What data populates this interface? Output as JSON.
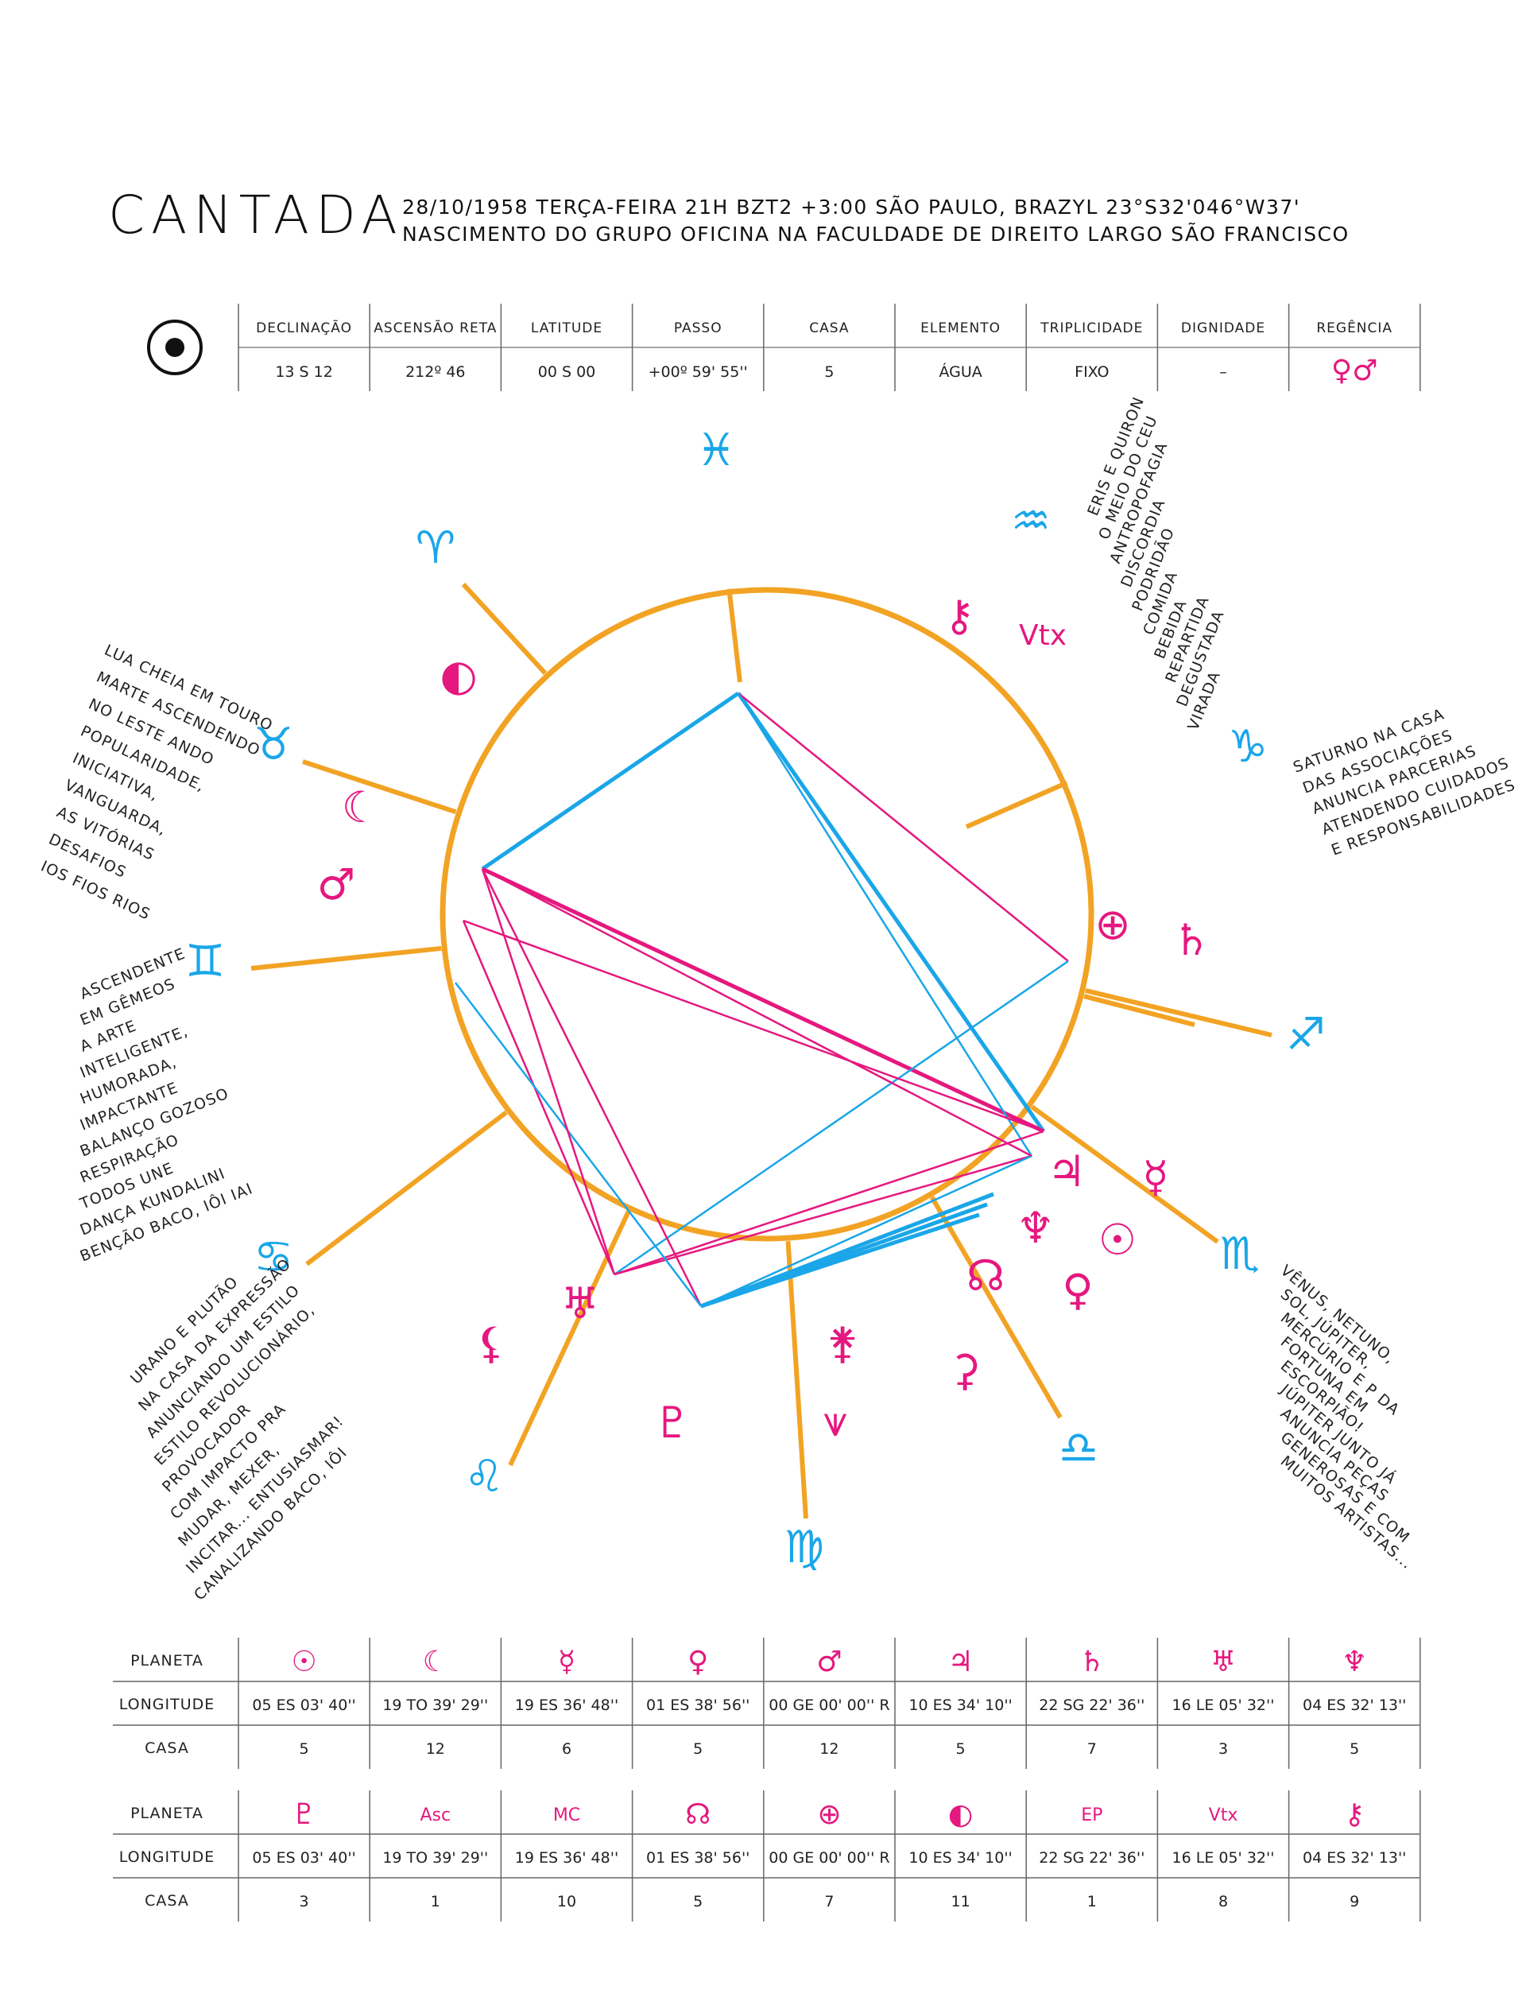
{
  "header": {
    "brand": "CANTADA",
    "line1": "28/10/1958 TERÇA-FEIRA 21H BZT2 +3:00 SÃO PAULO, BRAZYL 23°S32'046°W37'",
    "line2": "NASCIMENTO DO GRUPO OFICINA NA FACULDADE DE DIREITO LARGO SÃO FRANCISCO"
  },
  "sun_table": {
    "icon": "sun-icon",
    "headers": [
      "DECLINAÇÃO",
      "ASCENSÃO RETA",
      "LATITUDE",
      "PASSO",
      "CASA",
      "ELEMENTO",
      "TRIPLICIDADE",
      "DIGNIDADE",
      "REGÊNCIA"
    ],
    "values": [
      "13 S 12",
      "212º 46",
      "00 S 00",
      "+00º 59' 55''",
      "5",
      "ÁGUA",
      "FIXO",
      "–",
      "♀♂"
    ]
  },
  "chart": {
    "colors": {
      "orange": "#f2a324",
      "cyan": "#1aa6e8",
      "magenta": "#e5187f"
    },
    "signs": [
      {
        "name": "pisces-icon",
        "glyph": "♓"
      },
      {
        "name": "aquarius-icon",
        "glyph": "♒"
      },
      {
        "name": "capricorn-icon",
        "glyph": "♑"
      },
      {
        "name": "sagittarius-icon",
        "glyph": "♐"
      },
      {
        "name": "scorpio-icon",
        "glyph": "♏"
      },
      {
        "name": "libra-icon",
        "glyph": "♎"
      },
      {
        "name": "virgo-icon",
        "glyph": "♍"
      },
      {
        "name": "leo-icon",
        "glyph": "♌"
      },
      {
        "name": "cancer-icon",
        "glyph": "♋"
      },
      {
        "name": "gemini-icon",
        "glyph": "♊"
      },
      {
        "name": "taurus-icon",
        "glyph": "♉"
      },
      {
        "name": "aries-icon",
        "glyph": "♈"
      }
    ],
    "planets": [
      {
        "name": "moon-last-quarter-icon",
        "glyph": "◐",
        "label": ""
      },
      {
        "name": "chiron-icon",
        "glyph": "⚷",
        "label": ""
      },
      {
        "name": "vertex-label",
        "glyph": "",
        "label": "Vtx"
      },
      {
        "name": "moon-icon",
        "glyph": "☾",
        "label": ""
      },
      {
        "name": "mars-icon",
        "glyph": "♂",
        "label": ""
      },
      {
        "name": "part-of-fortune-icon",
        "glyph": "⊕",
        "label": ""
      },
      {
        "name": "saturn-icon",
        "glyph": "♄",
        "label": ""
      },
      {
        "name": "jupiter-icon",
        "glyph": "♃",
        "label": ""
      },
      {
        "name": "mercury-icon",
        "glyph": "☿",
        "label": ""
      },
      {
        "name": "neptune-icon",
        "glyph": "♆",
        "label": ""
      },
      {
        "name": "sun-icon",
        "glyph": "☉",
        "label": ""
      },
      {
        "name": "north-node-icon",
        "glyph": "☊",
        "label": ""
      },
      {
        "name": "venus-icon",
        "glyph": "♀",
        "label": ""
      },
      {
        "name": "ceres-icon",
        "glyph": "⚳",
        "label": ""
      },
      {
        "name": "juno-icon",
        "glyph": "⚵",
        "label": ""
      },
      {
        "name": "lilith-icon",
        "glyph": "⚸",
        "label": ""
      },
      {
        "name": "pluto-icon",
        "glyph": "♇",
        "label": ""
      },
      {
        "name": "uranus-icon",
        "glyph": "♅",
        "label": ""
      },
      {
        "name": "descendant-wave-icon",
        "glyph": "⩛",
        "label": ""
      }
    ],
    "notes": {
      "top_right": [
        "ERIS E QUIRON",
        "O MEIO DO CEU",
        "ANTROPOFAGIA",
        "DISCORDIA",
        "PODRIDÃO",
        "COMIDA",
        "BEBIDA",
        "REPARTIDA",
        "DEGUSTADA",
        "VIRADA"
      ],
      "right": [
        "SATURNO NA CASA",
        "DAS ASSOCIAÇÕES",
        "ANUNCIA PARCERIAS",
        "ATENDENDO CUIDADOS",
        "E RESPONSABILIDADES"
      ],
      "bottom_right": [
        "VÊNUS, NETUNO,",
        "SOL, JÚPITER,",
        "MERCÚRIO E P DA",
        "FORTUNA EM",
        "ESCORPIÃO!",
        "JÚPITER JUNTO JÁ",
        "ANUNCIA PEÇAS",
        "GENEROSAS E COM",
        "MUITOS ARTISTAS..."
      ],
      "top_left": [
        "LUA CHEIA EM TOURO",
        "MARTE ASCENDENDO",
        "NO LESTE ANDO",
        "POPULARIDADE,",
        "INICIATIVA,",
        "VANGUARDA,",
        "AS VITÓRIAS",
        "DESAFIOS",
        "IOS FIOS RIOS"
      ],
      "left": [
        "ASCENDENTE",
        "EM GÊMEOS",
        "A ARTE",
        "INTELIGENTE,",
        "HUMORADA,",
        "IMPACTANTE",
        "BALANÇO GOZOSO",
        "RESPIRAÇÃO",
        "TODOS UNE",
        "DANÇA KUNDALINI",
        "BENÇÃO BACO, IÔI IAI"
      ],
      "bottom_left": [
        "URANO E PLUTÃO",
        "NA CASA DA EXPRESSÃO",
        "ANUNCIANDO UM ESTILO",
        "ESTILO REVOLUCIONÁRIO,",
        "PROVOCADOR",
        "COM IMPACTO PRA",
        "MUDAR, MEXER,",
        "INCITAR... ENTUSIASMAR!",
        "CANALIZANDO BACO, IÔI"
      ]
    }
  },
  "planet_table_1": {
    "row_labels": [
      "PLANETA",
      "LONGITUDE",
      "CASA"
    ],
    "cols": [
      {
        "icon": "sun-icon",
        "glyph": "☉",
        "text": "",
        "longitude": "05 ES 03' 40''",
        "casa": "5"
      },
      {
        "icon": "moon-icon",
        "glyph": "☾",
        "text": "",
        "longitude": "19 TO 39' 29''",
        "casa": "12"
      },
      {
        "icon": "mercury-icon",
        "glyph": "☿",
        "text": "",
        "longitude": "19 ES 36' 48''",
        "casa": "6"
      },
      {
        "icon": "venus-icon",
        "glyph": "♀",
        "text": "",
        "longitude": "01 ES 38' 56''",
        "casa": "5"
      },
      {
        "icon": "mars-icon",
        "glyph": "♂",
        "text": "",
        "longitude": "00 GE 00' 00'' R",
        "casa": "12"
      },
      {
        "icon": "jupiter-icon",
        "glyph": "♃",
        "text": "",
        "longitude": "10 ES 34' 10''",
        "casa": "5"
      },
      {
        "icon": "saturn-icon",
        "glyph": "♄",
        "text": "",
        "longitude": "22 SG 22' 36''",
        "casa": "7"
      },
      {
        "icon": "uranus-icon",
        "glyph": "♅",
        "text": "",
        "longitude": "16 LE 05' 32''",
        "casa": "3"
      },
      {
        "icon": "neptune-icon",
        "glyph": "♆",
        "text": "",
        "longitude": "04 ES 32' 13''",
        "casa": "5"
      }
    ]
  },
  "planet_table_2": {
    "row_labels": [
      "PLANETA",
      "LONGITUDE",
      "CASA"
    ],
    "cols": [
      {
        "icon": "pluto-icon",
        "glyph": "♇",
        "text": "",
        "longitude": "05 ES 03' 40''",
        "casa": "3"
      },
      {
        "icon": "ascendant-label",
        "glyph": "",
        "text": "Asc",
        "longitude": "19 TO 39' 29''",
        "casa": "1"
      },
      {
        "icon": "midheaven-label",
        "glyph": "",
        "text": "MC",
        "longitude": "19 ES 36' 48''",
        "casa": "10"
      },
      {
        "icon": "north-node-icon",
        "glyph": "☊",
        "text": "",
        "longitude": "01 ES 38' 56''",
        "casa": "5"
      },
      {
        "icon": "part-of-fortune-icon",
        "glyph": "⊕",
        "text": "",
        "longitude": "00 GE 00' 00'' R",
        "casa": "7"
      },
      {
        "icon": "moon-last-quarter-icon",
        "glyph": "◐",
        "text": "",
        "longitude": "10 ES 34' 10''",
        "casa": "11"
      },
      {
        "icon": "east-point-label",
        "glyph": "",
        "text": "EP",
        "longitude": "22 SG 22' 36''",
        "casa": "1"
      },
      {
        "icon": "vertex-label",
        "glyph": "",
        "text": "Vtx",
        "longitude": "16 LE 05' 32''",
        "casa": "8"
      },
      {
        "icon": "chiron-icon",
        "glyph": "⚷",
        "text": "",
        "longitude": "04 ES 32' 13''",
        "casa": "9"
      }
    ]
  }
}
